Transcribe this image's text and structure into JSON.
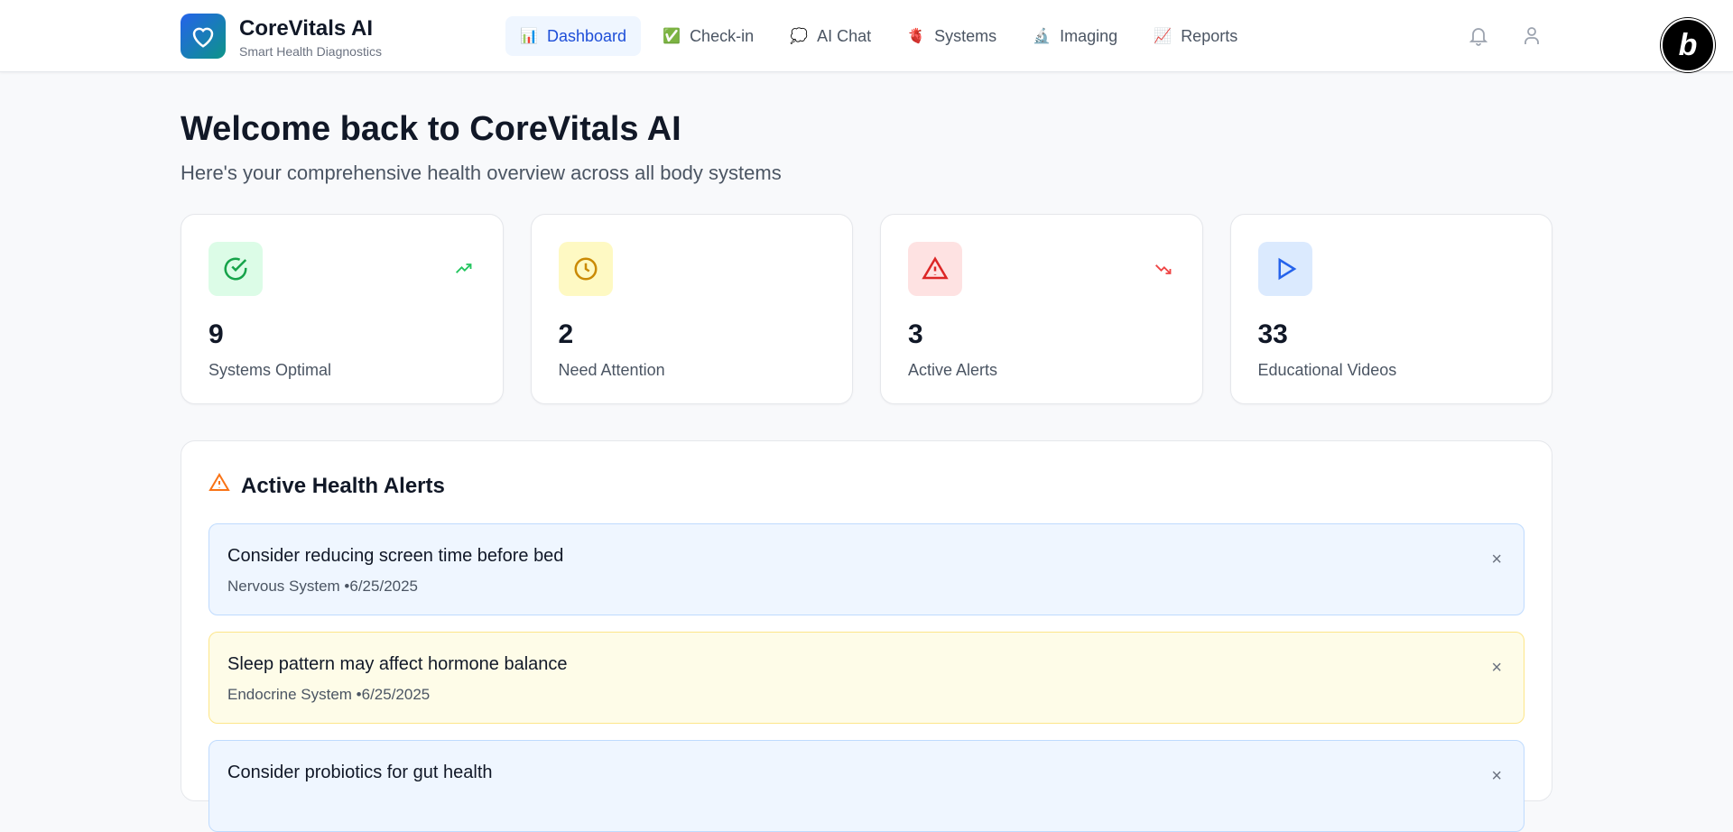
{
  "app": {
    "title": "CoreVitals AI",
    "subtitle": "Smart Health Diagnostics",
    "badge": "b"
  },
  "nav": [
    {
      "label": "Dashboard",
      "icon": "📊",
      "active": true
    },
    {
      "label": "Check-in",
      "icon": "✅"
    },
    {
      "label": "AI Chat",
      "icon": "💭"
    },
    {
      "label": "Systems",
      "icon": "🫀"
    },
    {
      "label": "Imaging",
      "icon": "🔬"
    },
    {
      "label": "Reports",
      "icon": "📈"
    }
  ],
  "page": {
    "title": "Welcome back to CoreVitals AI",
    "subtitle": "Here's your comprehensive health overview across all body systems"
  },
  "stats": [
    {
      "value": "9",
      "label": "Systems Optimal",
      "icon": "check-circle",
      "trend": "up",
      "color": "#16a34a",
      "bg": "#dcfce7"
    },
    {
      "value": "2",
      "label": "Need Attention",
      "icon": "clock",
      "color": "#ca8a04",
      "bg": "#fef9c3"
    },
    {
      "value": "3",
      "label": "Active Alerts",
      "icon": "alert-triangle",
      "trend": "down",
      "color": "#dc2626",
      "bg": "#fee2e2"
    },
    {
      "value": "33",
      "label": "Educational Videos",
      "icon": "play",
      "color": "#2563eb",
      "bg": "#dbeafe"
    }
  ],
  "alerts": {
    "title": "Active Health Alerts",
    "items": [
      {
        "message": "Consider reducing screen time before bed",
        "meta": "Nervous System •6/25/2025",
        "tone": "blue",
        "close": "×"
      },
      {
        "message": "Sleep pattern may affect hormone balance",
        "meta": "Endocrine System •6/25/2025",
        "tone": "yellow",
        "close": "×"
      },
      {
        "message": "Consider probiotics for gut health",
        "meta": "",
        "tone": "blue",
        "close": "×"
      }
    ]
  }
}
